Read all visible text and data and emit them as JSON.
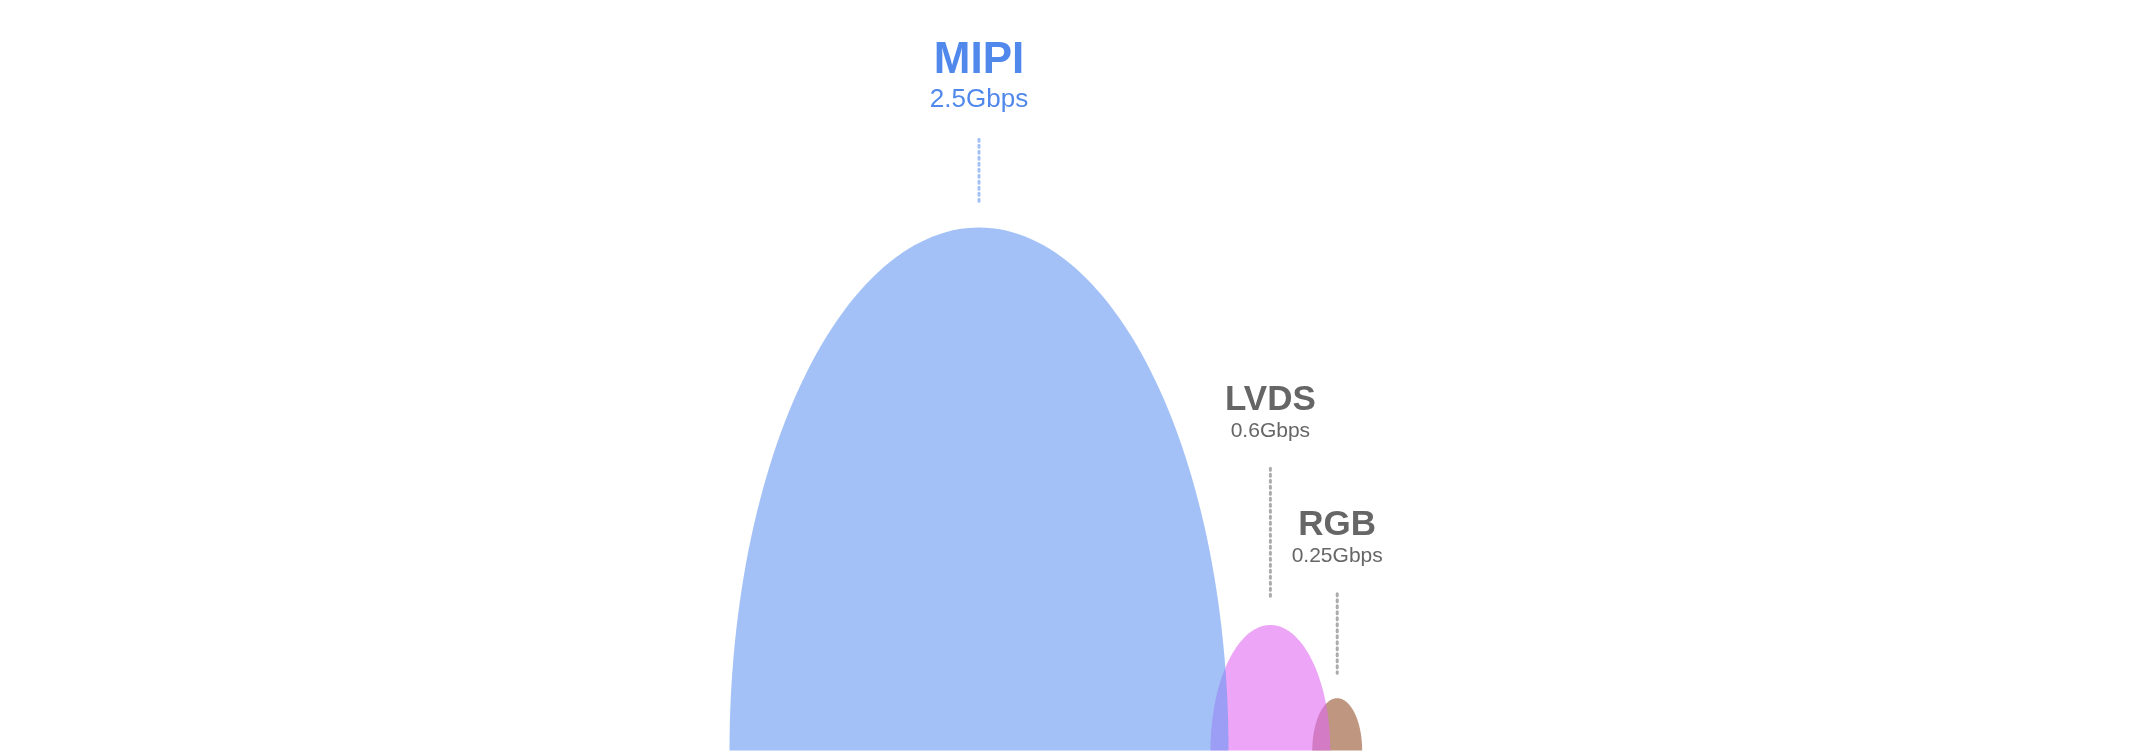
{
  "chart_data": {
    "type": "other",
    "categories": [
      "MIPI",
      "LVDS",
      "RGB"
    ],
    "values": [
      2.5,
      0.6,
      0.25
    ],
    "value_labels": [
      "2.5Gbps",
      "0.6Gbps",
      "0.25Gbps"
    ],
    "colors": [
      "#a3c1f7",
      "#eda5f7",
      "#bf967f"
    ]
  }
}
